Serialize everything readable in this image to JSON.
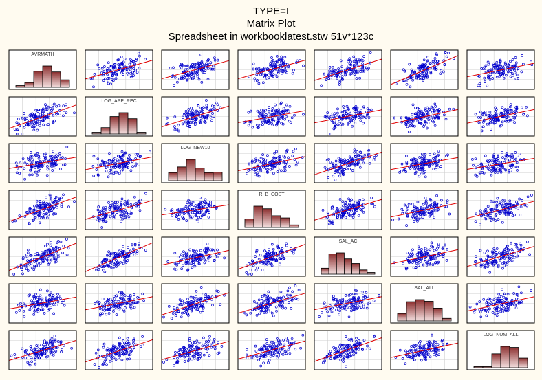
{
  "chart_data": {
    "type": "scatter-matrix",
    "title": "TYPE=I",
    "subtitle": "Matrix Plot",
    "caption": "Spreadsheet in workbooklatest.stw 51v*123c",
    "variables": [
      "AVRMATH",
      "LOG_APP_REC",
      "LOG_NEW10",
      "R_B_COST",
      "SAL_AC",
      "SAL_ALL",
      "LOG_NUM_ALL"
    ],
    "histograms": [
      [
        0.08,
        0.22,
        0.75,
        1.0,
        0.72,
        0.35
      ],
      [
        0.08,
        0.3,
        0.82,
        1.0,
        0.72,
        0.08
      ],
      [
        0.38,
        0.65,
        1.0,
        0.6,
        0.38,
        0.4
      ],
      [
        0.4,
        1.0,
        0.88,
        0.55,
        0.45,
        0.12
      ],
      [
        0.28,
        0.95,
        1.0,
        0.72,
        0.5,
        0.2,
        0.08
      ],
      [
        0.35,
        0.9,
        1.0,
        0.92,
        0.6,
        0.12
      ],
      [
        0.05,
        0.05,
        0.65,
        1.0,
        0.95,
        0.45
      ]
    ],
    "points_per_panel": 123,
    "grid": true,
    "fit_lines": true
  },
  "colors": {
    "background": "#fffbf0",
    "panel_background": "#ffffff",
    "panel_border": "#000000",
    "grid": "#cfcfcf",
    "point": "#0000cc",
    "fit_line": "#e00000",
    "histogram_fill_top": "#8c2f2f",
    "histogram_fill_bottom": "#f4e0e0",
    "histogram_stroke": "#000000"
  }
}
